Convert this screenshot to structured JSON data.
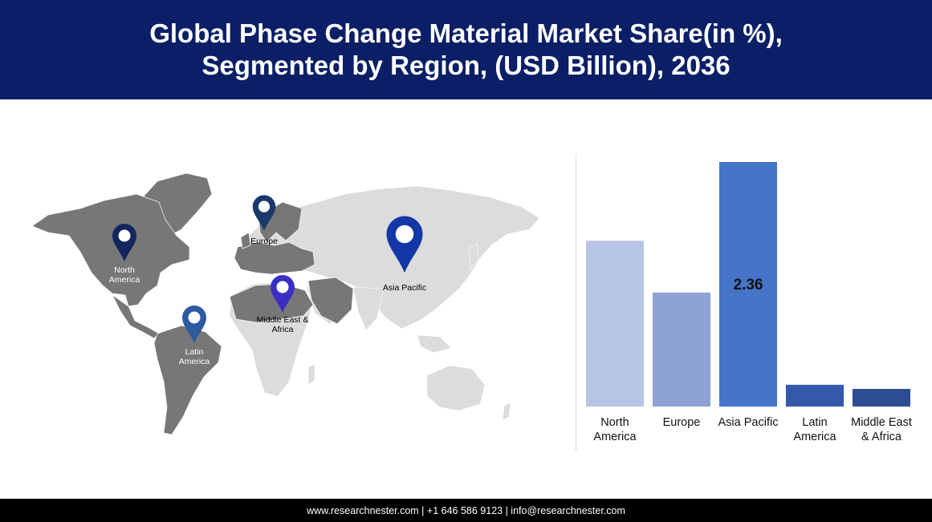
{
  "header": {
    "title_line1": "Global Phase Change Material Market Share(in %),",
    "title_line2": "Segmented by Region, (USD Billion), 2036"
  },
  "map": {
    "markers": [
      {
        "line1": "North",
        "line2": "America",
        "icon": "map-pin-icon",
        "color": "#13275e"
      },
      {
        "line1": "Europe",
        "line2": "",
        "icon": "map-pin-icon",
        "color": "#1b3a6b"
      },
      {
        "line1": "Asia Pacific",
        "line2": "",
        "icon": "map-pin-icon",
        "color": "#1337a6"
      },
      {
        "line1": "Middle East &",
        "line2": "Africa",
        "icon": "map-pin-icon",
        "color": "#3a2fc2"
      },
      {
        "line1": "Latin",
        "line2": "America",
        "icon": "map-pin-icon",
        "color": "#2d5aa0"
      }
    ]
  },
  "chart_data": {
    "type": "bar",
    "categories": [
      [
        "North",
        "America"
      ],
      [
        "Europe"
      ],
      [
        "Asia Pacific"
      ],
      [
        "Latin",
        "America"
      ],
      [
        "Middle East",
        "& Africa"
      ]
    ],
    "values": [
      1.6,
      1.1,
      2.36,
      0.21,
      0.17
    ],
    "data_labels": [
      "",
      "",
      "2.36",
      "",
      ""
    ],
    "colors": [
      "#b8c4e3",
      "#8ea2d4",
      "#4674c9",
      "#3559aa",
      "#2c4d91"
    ],
    "title": "",
    "xlabel": "",
    "ylabel": "",
    "ylim": [
      0,
      2.36
    ],
    "grid": false
  },
  "footer": {
    "text": "www.researchnester.com | +1 646 586 9123 | info@researchnester.com"
  }
}
